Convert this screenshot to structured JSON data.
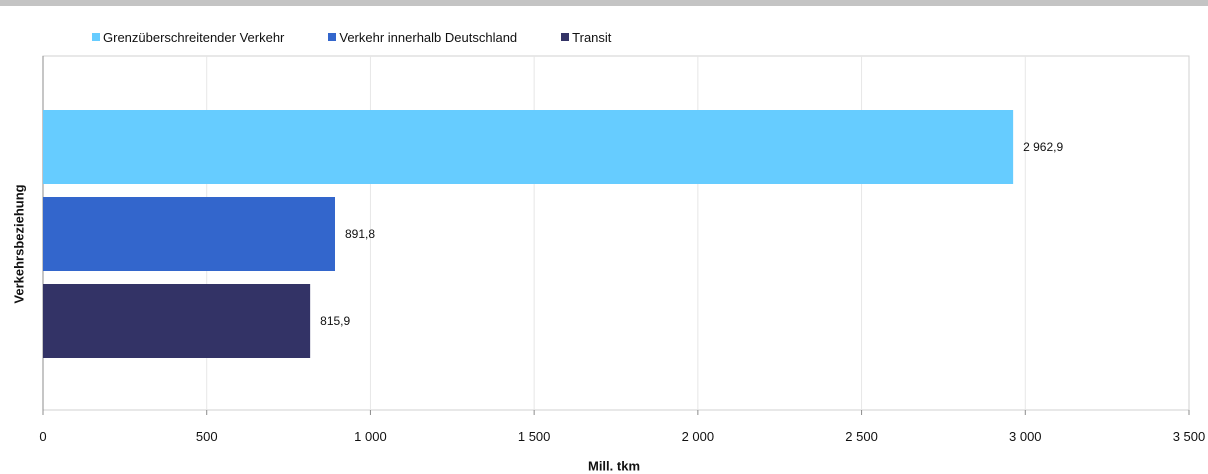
{
  "chart_data": {
    "type": "bar",
    "orientation": "horizontal",
    "xlabel": "Mill. tkm",
    "ylabel": "Verkehrsbeziehung",
    "xlim": [
      0,
      3500
    ],
    "x_ticks": [
      {
        "value": 0,
        "label": "0"
      },
      {
        "value": 500,
        "label": "500"
      },
      {
        "value": 1000,
        "label": "1 000"
      },
      {
        "value": 1500,
        "label": "1 500"
      },
      {
        "value": 2000,
        "label": "2 000"
      },
      {
        "value": 2500,
        "label": "2 500"
      },
      {
        "value": 3000,
        "label": "3 000"
      },
      {
        "value": 3500,
        "label": "3 500"
      }
    ],
    "grid": true,
    "legend_position": "top-left",
    "series": [
      {
        "name": "Grenzüberschreitender Verkehr",
        "value": 2962.9,
        "label": "2 962,9",
        "color": "#66ccff"
      },
      {
        "name": "Verkehr innerhalb Deutschland",
        "value": 891.8,
        "label": "891,8",
        "color": "#3366cc"
      },
      {
        "name": "Transit",
        "value": 815.9,
        "label": "815,9",
        "color": "#333366"
      }
    ]
  }
}
